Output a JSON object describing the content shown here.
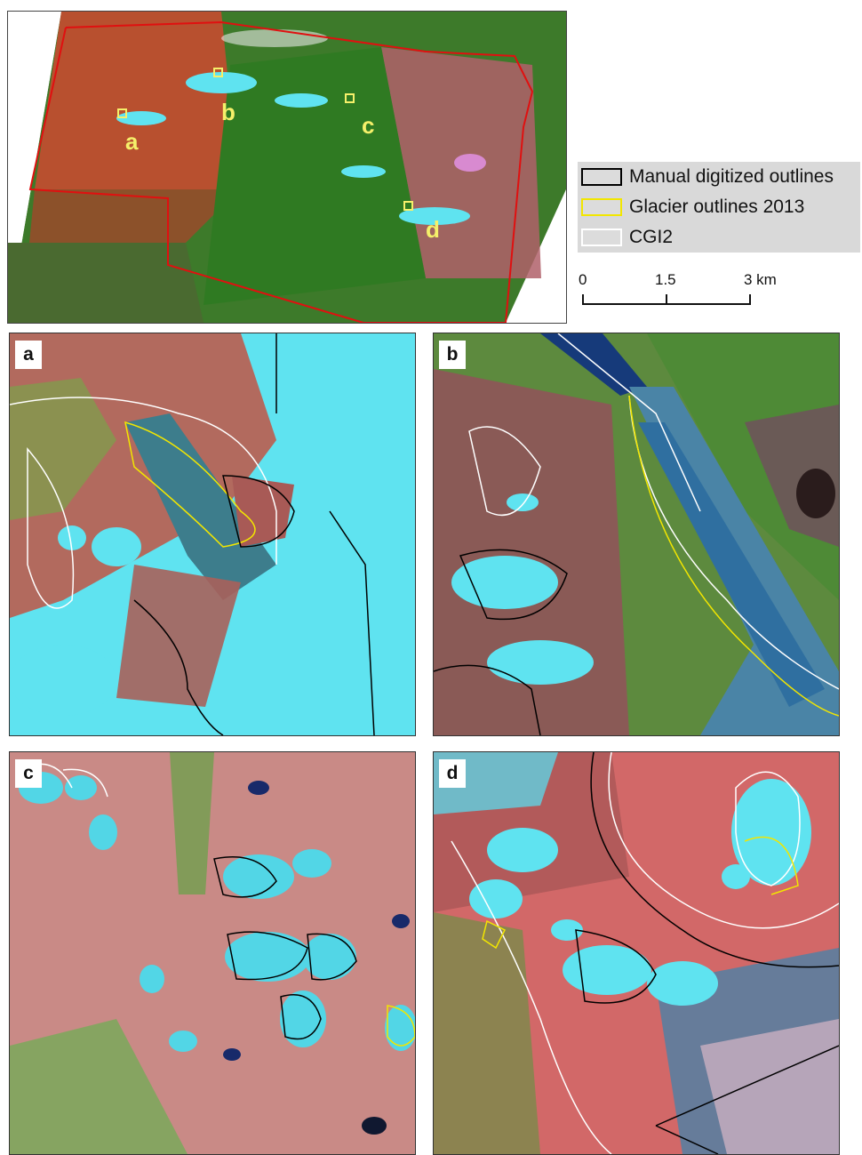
{
  "overview": {
    "markers": [
      {
        "id": "a",
        "label": "a"
      },
      {
        "id": "b",
        "label": "b"
      },
      {
        "id": "c",
        "label": "c"
      },
      {
        "id": "d",
        "label": "d"
      }
    ]
  },
  "legend": {
    "items": [
      {
        "label": "Manual digitized outlines",
        "color": "#000000"
      },
      {
        "label": "Glacier outlines 2013",
        "color": "#f2e600"
      },
      {
        "label": "CGI2",
        "color": "#ffffff"
      }
    ]
  },
  "scale": {
    "ticks": [
      "0",
      "1.5",
      "3 km"
    ]
  },
  "panels": [
    {
      "label": "a"
    },
    {
      "label": "b"
    },
    {
      "label": "c"
    },
    {
      "label": "d"
    }
  ],
  "colors": {
    "study_area_boundary": "#e01010",
    "marker": "#f5f06a",
    "ice": "#5fe3f0",
    "terrain_red": "#c86a6a",
    "vegetation": "#3a9a2a"
  }
}
